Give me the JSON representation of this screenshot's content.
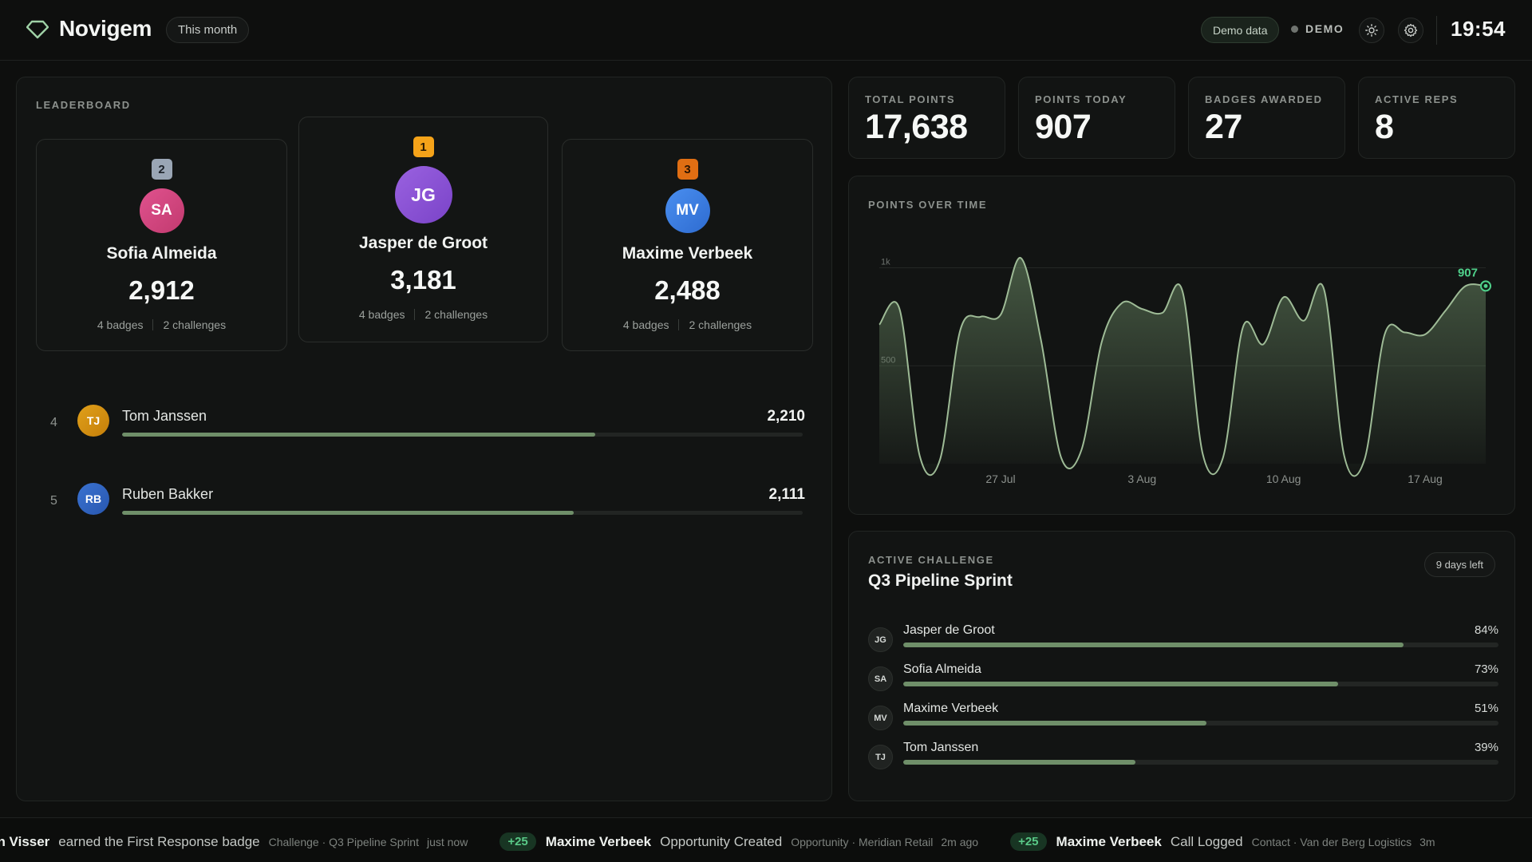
{
  "header": {
    "brand": "Novigem",
    "range": "This month",
    "demo_pill": "Demo data",
    "demo_status": "DEMO",
    "clock": "19:54"
  },
  "leaderboard": {
    "label": "LEADERBOARD",
    "podium": [
      {
        "rank": "2",
        "initials": "SA",
        "name": "Sofia Almeida",
        "points": "2,912",
        "badges": "4 badges",
        "challenges": "2 challenges"
      },
      {
        "rank": "1",
        "initials": "JG",
        "name": "Jasper de Groot",
        "points": "3,181",
        "badges": "4 badges",
        "challenges": "2 challenges"
      },
      {
        "rank": "3",
        "initials": "MV",
        "name": "Maxime Verbeek",
        "points": "2,488",
        "badges": "4 badges",
        "challenges": "2 challenges"
      }
    ],
    "rows": [
      {
        "rank": "4",
        "initials": "TJ",
        "name": "Tom Janssen",
        "points": "2,210",
        "progress": 0.695
      },
      {
        "rank": "5",
        "initials": "RB",
        "name": "Ruben Bakker",
        "points": "2,111",
        "progress": 0.664
      }
    ]
  },
  "stats": [
    {
      "label": "TOTAL POINTS",
      "value": "17,638"
    },
    {
      "label": "POINTS TODAY",
      "value": "907"
    },
    {
      "label": "BADGES AWARDED",
      "value": "27"
    },
    {
      "label": "ACTIVE REPS",
      "value": "8"
    }
  ],
  "chart": {
    "label": "POINTS OVER TIME",
    "last_value_label": "907"
  },
  "chart_data": {
    "type": "area",
    "title": "POINTS OVER TIME",
    "x_ticks": [
      "27 Jul",
      "3 Aug",
      "10 Aug",
      "17 Aug"
    ],
    "y_ticks": [
      "1k",
      "500"
    ],
    "ylim": [
      0,
      1100
    ],
    "x": [
      "21 Jul",
      "22 Jul",
      "23 Jul",
      "24 Jul",
      "25 Jul",
      "26 Jul",
      "27 Jul",
      "28 Jul",
      "29 Jul",
      "30 Jul",
      "31 Jul",
      "1 Aug",
      "2 Aug",
      "3 Aug",
      "4 Aug",
      "5 Aug",
      "6 Aug",
      "7 Aug",
      "8 Aug",
      "9 Aug",
      "10 Aug",
      "11 Aug",
      "12 Aug",
      "13 Aug",
      "14 Aug",
      "15 Aug",
      "16 Aug",
      "17 Aug",
      "18 Aug",
      "19 Aug",
      "20 Aug"
    ],
    "series": [
      {
        "values": [
          710,
          790,
          40,
          20,
          680,
          750,
          760,
          1050,
          630,
          30,
          70,
          620,
          820,
          790,
          770,
          880,
          50,
          30,
          700,
          610,
          850,
          730,
          890,
          40,
          20,
          660,
          670,
          660,
          780,
          907,
          907
        ]
      }
    ],
    "grid": true,
    "accent": "#6f8f69",
    "marker_color": "#4fd08a"
  },
  "challenge": {
    "label": "ACTIVE CHALLENGE",
    "title": "Q3 Pipeline Sprint",
    "days_left": "9 days left",
    "rows": [
      {
        "initials": "JG",
        "name": "Jasper de Groot",
        "pct": "84%",
        "value": 0.84
      },
      {
        "initials": "SA",
        "name": "Sofia Almeida",
        "pct": "73%",
        "value": 0.73
      },
      {
        "initials": "MV",
        "name": "Maxime Verbeek",
        "pct": "51%",
        "value": 0.51
      },
      {
        "initials": "TJ",
        "name": "Tom Janssen",
        "pct": "39%",
        "value": 0.39
      }
    ]
  },
  "ticker": [
    {
      "plus": "",
      "name": "an Visser",
      "action": "earned the First Response badge",
      "ctx": "Challenge · Q3 Pipeline Sprint",
      "time": "just now"
    },
    {
      "plus": "+25",
      "name": "Maxime Verbeek",
      "action": "Opportunity Created",
      "ctx": "Opportunity · Meridian Retail",
      "time": "2m ago"
    },
    {
      "plus": "+25",
      "name": "Maxime Verbeek",
      "action": "Call Logged",
      "ctx": "Contact · Van der Berg Logistics",
      "time": "3m"
    }
  ],
  "colors": {
    "rank1": "#f5a319",
    "rank2": "#9aa6b5",
    "rank3": "#e06e13",
    "avatar_sa": "#d8477f",
    "avatar_jg": "#8b54d4",
    "avatar_mv": "#3a7ee0",
    "avatar_tj": "#d9900f",
    "avatar_rb": "#2f64c2"
  }
}
